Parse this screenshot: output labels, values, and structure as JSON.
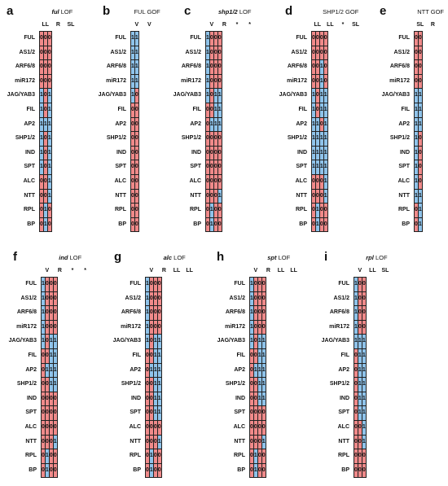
{
  "colors": {
    "zero": "#f08a8a",
    "one": "#8fc3ea"
  },
  "genes": [
    "FUL",
    "AS1/2",
    "ARF6/8",
    "miR172",
    "JAG/YAB3",
    "FIL",
    "AP2",
    "SHP1/2",
    "IND",
    "SPT",
    "ALC",
    "NTT",
    "RPL",
    "BP"
  ],
  "panels": [
    {
      "letter": "a",
      "title_gene": "ful",
      "title_rest": " LOF",
      "cols": [
        "LL",
        "R",
        "SL"
      ],
      "grid": [
        [
          0,
          0,
          0
        ],
        [
          0,
          0,
          0
        ],
        [
          0,
          0,
          0
        ],
        [
          0,
          0,
          0
        ],
        [
          1,
          0,
          1
        ],
        [
          1,
          0,
          1
        ],
        [
          1,
          1,
          1
        ],
        [
          1,
          0,
          1
        ],
        [
          1,
          0,
          1
        ],
        [
          1,
          0,
          1
        ],
        [
          0,
          0,
          1
        ],
        [
          0,
          0,
          1
        ],
        [
          0,
          1,
          0
        ],
        [
          0,
          1,
          0
        ]
      ]
    },
    {
      "letter": "b",
      "title_gene": "",
      "title_rest": "FUL GOF",
      "cols": [
        "V",
        "V"
      ],
      "grid": [
        [
          1,
          1
        ],
        [
          1,
          1
        ],
        [
          1,
          1
        ],
        [
          1,
          1
        ],
        [
          1,
          0
        ],
        [
          0,
          0
        ],
        [
          0,
          0
        ],
        [
          0,
          0
        ],
        [
          0,
          0
        ],
        [
          0,
          0
        ],
        [
          0,
          0
        ],
        [
          0,
          0
        ],
        [
          0,
          0
        ],
        [
          0,
          0
        ]
      ]
    },
    {
      "letter": "c",
      "title_gene": "shp1/2",
      "title_rest": " LOF",
      "cols": [
        "V",
        "R",
        "*",
        "*"
      ],
      "grid": [
        [
          1,
          0,
          0,
          0
        ],
        [
          1,
          0,
          0,
          0
        ],
        [
          1,
          0,
          0,
          0
        ],
        [
          1,
          0,
          0,
          0
        ],
        [
          1,
          0,
          1,
          1
        ],
        [
          0,
          0,
          1,
          1
        ],
        [
          0,
          1,
          1,
          1
        ],
        [
          0,
          0,
          0,
          0
        ],
        [
          0,
          0,
          0,
          0
        ],
        [
          0,
          0,
          0,
          0
        ],
        [
          0,
          0,
          0,
          0
        ],
        [
          0,
          0,
          0,
          1
        ],
        [
          0,
          1,
          0,
          0
        ],
        [
          0,
          1,
          0,
          0
        ]
      ]
    },
    {
      "letter": "d",
      "title_gene": "",
      "title_rest": "SHP1/2 GOF",
      "cols": [
        "LL",
        "LL",
        "*",
        "SL"
      ],
      "grid": [
        [
          0,
          0,
          0,
          0
        ],
        [
          0,
          0,
          0,
          0
        ],
        [
          0,
          0,
          1,
          0
        ],
        [
          0,
          0,
          1,
          0
        ],
        [
          1,
          0,
          1,
          1
        ],
        [
          1,
          0,
          1,
          1
        ],
        [
          1,
          1,
          0,
          1
        ],
        [
          1,
          1,
          1,
          1
        ],
        [
          1,
          1,
          1,
          1
        ],
        [
          1,
          1,
          1,
          1
        ],
        [
          0,
          0,
          0,
          1
        ],
        [
          0,
          0,
          0,
          1
        ],
        [
          0,
          1,
          0,
          0
        ],
        [
          0,
          1,
          0,
          0
        ]
      ]
    },
    {
      "letter": "e",
      "title_gene": "",
      "title_rest": "NTT GOF",
      "cols": [
        "SL",
        "R"
      ],
      "grid": [
        [
          0,
          0
        ],
        [
          0,
          0
        ],
        [
          0,
          0
        ],
        [
          0,
          0
        ],
        [
          1,
          1
        ],
        [
          1,
          1
        ],
        [
          1,
          1
        ],
        [
          1,
          0
        ],
        [
          1,
          0
        ],
        [
          1,
          0
        ],
        [
          1,
          0
        ],
        [
          1,
          1
        ],
        [
          0,
          1
        ],
        [
          0,
          1
        ]
      ]
    },
    {
      "letter": "f",
      "title_gene": "ind",
      "title_rest": " LOF",
      "cols": [
        "V",
        "R",
        "*",
        "*"
      ],
      "grid": [
        [
          1,
          0,
          0,
          0
        ],
        [
          1,
          0,
          0,
          0
        ],
        [
          1,
          0,
          0,
          0
        ],
        [
          1,
          0,
          0,
          0
        ],
        [
          1,
          0,
          1,
          1
        ],
        [
          0,
          0,
          1,
          1
        ],
        [
          0,
          1,
          1,
          1
        ],
        [
          0,
          0,
          1,
          1
        ],
        [
          0,
          0,
          0,
          0
        ],
        [
          0,
          0,
          0,
          0
        ],
        [
          0,
          0,
          0,
          0
        ],
        [
          0,
          0,
          0,
          1
        ],
        [
          0,
          1,
          0,
          0
        ],
        [
          0,
          1,
          0,
          0
        ]
      ]
    },
    {
      "letter": "g",
      "title_gene": "alc",
      "title_rest": " LOF",
      "cols": [
        "V",
        "R",
        "LL",
        "LL"
      ],
      "grid": [
        [
          1,
          0,
          0,
          0
        ],
        [
          1,
          0,
          0,
          0
        ],
        [
          1,
          0,
          0,
          0
        ],
        [
          1,
          0,
          0,
          0
        ],
        [
          1,
          0,
          1,
          1
        ],
        [
          0,
          0,
          1,
          1
        ],
        [
          0,
          1,
          1,
          1
        ],
        [
          0,
          0,
          1,
          1
        ],
        [
          0,
          0,
          1,
          1
        ],
        [
          0,
          0,
          1,
          1
        ],
        [
          0,
          0,
          0,
          0
        ],
        [
          0,
          0,
          0,
          1
        ],
        [
          0,
          1,
          0,
          0
        ],
        [
          0,
          1,
          0,
          0
        ]
      ]
    },
    {
      "letter": "h",
      "title_gene": "spt",
      "title_rest": " LOF",
      "cols": [
        "V",
        "R",
        "LL",
        "LL"
      ],
      "grid": [
        [
          1,
          0,
          0,
          0
        ],
        [
          1,
          0,
          0,
          0
        ],
        [
          1,
          0,
          0,
          0
        ],
        [
          1,
          0,
          0,
          0
        ],
        [
          1,
          0,
          1,
          1
        ],
        [
          0,
          0,
          1,
          1
        ],
        [
          0,
          1,
          1,
          1
        ],
        [
          0,
          0,
          1,
          1
        ],
        [
          0,
          0,
          1,
          1
        ],
        [
          0,
          0,
          0,
          0
        ],
        [
          0,
          0,
          0,
          0
        ],
        [
          0,
          0,
          0,
          1
        ],
        [
          0,
          1,
          0,
          0
        ],
        [
          0,
          1,
          0,
          0
        ]
      ]
    },
    {
      "letter": "i",
      "title_gene": "rpl",
      "title_rest": " LOF",
      "cols": [
        "V",
        "LL",
        "SL"
      ],
      "grid": [
        [
          1,
          0,
          0
        ],
        [
          1,
          0,
          0
        ],
        [
          1,
          0,
          0
        ],
        [
          1,
          0,
          0
        ],
        [
          1,
          1,
          1
        ],
        [
          0,
          1,
          1
        ],
        [
          0,
          1,
          1
        ],
        [
          0,
          1,
          1
        ],
        [
          0,
          1,
          1
        ],
        [
          0,
          1,
          1
        ],
        [
          0,
          0,
          1
        ],
        [
          0,
          0,
          1
        ],
        [
          0,
          0,
          0
        ],
        [
          0,
          0,
          0
        ]
      ]
    }
  ]
}
